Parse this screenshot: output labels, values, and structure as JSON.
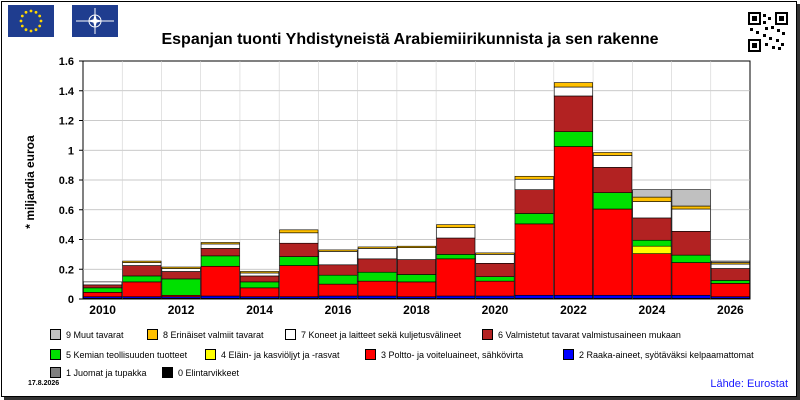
{
  "title": "Espanjan tuonti Yhdistyneistä Arabiemiirikunnista ja sen rakenne",
  "ylabel": "* miljardia euroa",
  "date": "17.8.2026",
  "source": "Lähde: Eurostat",
  "chart_data": {
    "type": "bar",
    "stacked": true,
    "title": "Espanjan tuonti Yhdistyneistä Arabiemiirikunnista ja sen rakenne",
    "ylabel": "* miljardia euroa",
    "ylim": [
      0,
      1.6
    ],
    "yticks": [
      "0",
      "0.2",
      "0.4",
      "0.6",
      "0.8",
      "1",
      "1.2",
      "1.4",
      "1.6"
    ],
    "xtick_labels": [
      "2010",
      "2012",
      "2014",
      "2016",
      "2018",
      "2020",
      "2022",
      "2024",
      "2026"
    ],
    "grid": true,
    "categories": [
      "2010",
      "2011",
      "2012",
      "2013",
      "2014",
      "2015",
      "2016",
      "2017",
      "2018",
      "2019",
      "2020",
      "2021",
      "2022",
      "2023",
      "2024",
      "2025",
      "2026"
    ],
    "series": [
      {
        "name": "0 Elintarvikkeet",
        "color": "#000000",
        "values": [
          0.005,
          0.005,
          0.005,
          0.005,
          0.005,
          0.005,
          0.005,
          0.005,
          0.005,
          0.005,
          0.005,
          0.005,
          0.005,
          0.005,
          0.005,
          0.005,
          0.005
        ]
      },
      {
        "name": "1 Juomat ja tupakka",
        "color": "#808080",
        "values": [
          0,
          0,
          0,
          0,
          0,
          0,
          0,
          0,
          0,
          0,
          0,
          0,
          0,
          0,
          0,
          0,
          0
        ]
      },
      {
        "name": "2 Raaka-aineet, syötäväksi kelpaamattomat",
        "color": "#0000ff",
        "values": [
          0.01,
          0.01,
          0.01,
          0.015,
          0.01,
          0.01,
          0.015,
          0.015,
          0.01,
          0.015,
          0.015,
          0.02,
          0.02,
          0.02,
          0.02,
          0.02,
          0.01
        ]
      },
      {
        "name": "3 Poltto- ja voiteluaineet, sähkövirta",
        "color": "#ff0000",
        "values": [
          0.03,
          0.1,
          0.01,
          0.2,
          0.06,
          0.21,
          0.08,
          0.1,
          0.1,
          0.25,
          0.1,
          0.48,
          1.0,
          0.58,
          0.28,
          0.22,
          0.09
        ]
      },
      {
        "name": "4 Eläin- ja kasviöljyt ja -rasvat",
        "color": "#ffff00",
        "values": [
          0,
          0,
          0,
          0,
          0,
          0,
          0,
          0,
          0,
          0,
          0,
          0,
          0,
          0,
          0.05,
          0,
          0
        ]
      },
      {
        "name": "5 Kemian teollisuuden tuotteet",
        "color": "#00e000",
        "values": [
          0.03,
          0.04,
          0.11,
          0.07,
          0.04,
          0.06,
          0.06,
          0.06,
          0.05,
          0.03,
          0.03,
          0.07,
          0.1,
          0.11,
          0.04,
          0.05,
          0.02
        ]
      },
      {
        "name": "6 Valmistetut tavarat valmistusaineen mukaan",
        "color": "#b22222",
        "values": [
          0.02,
          0.07,
          0.05,
          0.05,
          0.04,
          0.09,
          0.07,
          0.09,
          0.1,
          0.11,
          0.09,
          0.16,
          0.24,
          0.17,
          0.15,
          0.16,
          0.08
        ]
      },
      {
        "name": "7 Koneet ja laitteet sekä kuljetusvälineet",
        "color": "#ffffff",
        "values": [
          0.02,
          0.02,
          0.02,
          0.03,
          0.02,
          0.07,
          0.09,
          0.07,
          0.08,
          0.07,
          0.06,
          0.07,
          0.06,
          0.08,
          0.11,
          0.15,
          0.03
        ]
      },
      {
        "name": "8 Erinäiset valmiit tavarat",
        "color": "#ffc000",
        "values": [
          0,
          0.01,
          0.01,
          0.01,
          0.01,
          0.02,
          0.01,
          0.01,
          0.01,
          0.02,
          0.01,
          0.02,
          0.03,
          0.02,
          0.03,
          0.02,
          0.01
        ]
      },
      {
        "name": "9 Muut tavarat",
        "color": "#c0c0c0",
        "values": [
          0,
          0,
          0,
          0,
          0,
          0,
          0,
          0,
          0,
          0,
          0,
          0,
          0,
          0,
          0.05,
          0.11,
          0.01
        ]
      }
    ]
  },
  "legend": [
    {
      "label": "9 Muut tavarat",
      "color": "#c0c0c0"
    },
    {
      "label": "8 Erinäiset valmiit tavarat",
      "color": "#ffc000"
    },
    {
      "label": "7 Koneet ja laitteet sekä kuljetusvälineet",
      "color": "#ffffff"
    },
    {
      "label": "6 Valmistetut tavarat valmistusaineen mukaan",
      "color": "#b22222"
    },
    {
      "label": "5 Kemian teollisuuden tuotteet",
      "color": "#00e000"
    },
    {
      "label": "4 Eläin- ja kasviöljyt ja -rasvat",
      "color": "#ffff00"
    },
    {
      "label": "3 Poltto- ja voiteluaineet, sähkövirta",
      "color": "#ff0000"
    },
    {
      "label": "2 Raaka-aineet, syötäväksi kelpaamattomat",
      "color": "#0000ff"
    },
    {
      "label": "1 Juomat ja tupakka",
      "color": "#808080"
    },
    {
      "label": "0 Elintarvikkeet",
      "color": "#000000"
    }
  ]
}
